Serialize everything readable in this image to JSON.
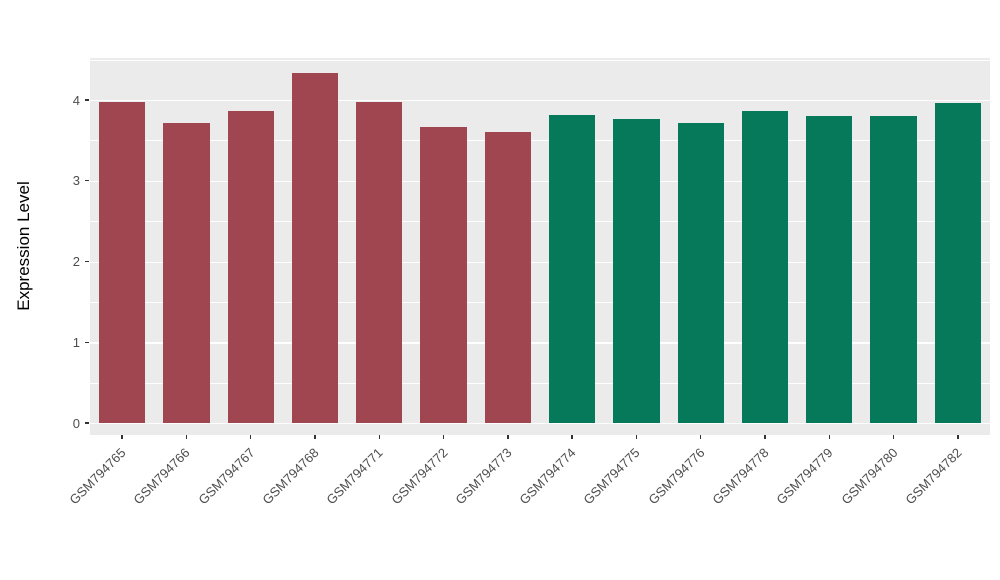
{
  "chart_data": {
    "type": "bar",
    "title": "",
    "xlabel": "",
    "ylabel": "Expression Level",
    "categories": [
      "GSM794765",
      "GSM794766",
      "GSM794767",
      "GSM794768",
      "GSM794771",
      "GSM794772",
      "GSM794773",
      "GSM794774",
      "GSM794775",
      "GSM794776",
      "GSM794778",
      "GSM794779",
      "GSM794780",
      "GSM794782"
    ],
    "values": [
      3.98,
      3.72,
      3.87,
      4.33,
      3.97,
      3.66,
      3.6,
      3.82,
      3.76,
      3.72,
      3.87,
      3.8,
      3.8,
      3.96
    ],
    "groups": [
      "g1",
      "g1",
      "g1",
      "g1",
      "g1",
      "g1",
      "g1",
      "g2",
      "g2",
      "g2",
      "g2",
      "g2",
      "g2",
      "g2"
    ],
    "group_colors": {
      "g1": "#A04651",
      "g2": "#07795B"
    },
    "ylim": [
      0,
      4.5
    ],
    "yticks": [
      0,
      1,
      2,
      3,
      4
    ],
    "minor_ticks": [
      0.5,
      1.5,
      2.5,
      3.5,
      4.5
    ],
    "grid": true,
    "legend": "none",
    "panel_bg": "#EBEBEB",
    "gridline_color": "#FFFFFF"
  }
}
